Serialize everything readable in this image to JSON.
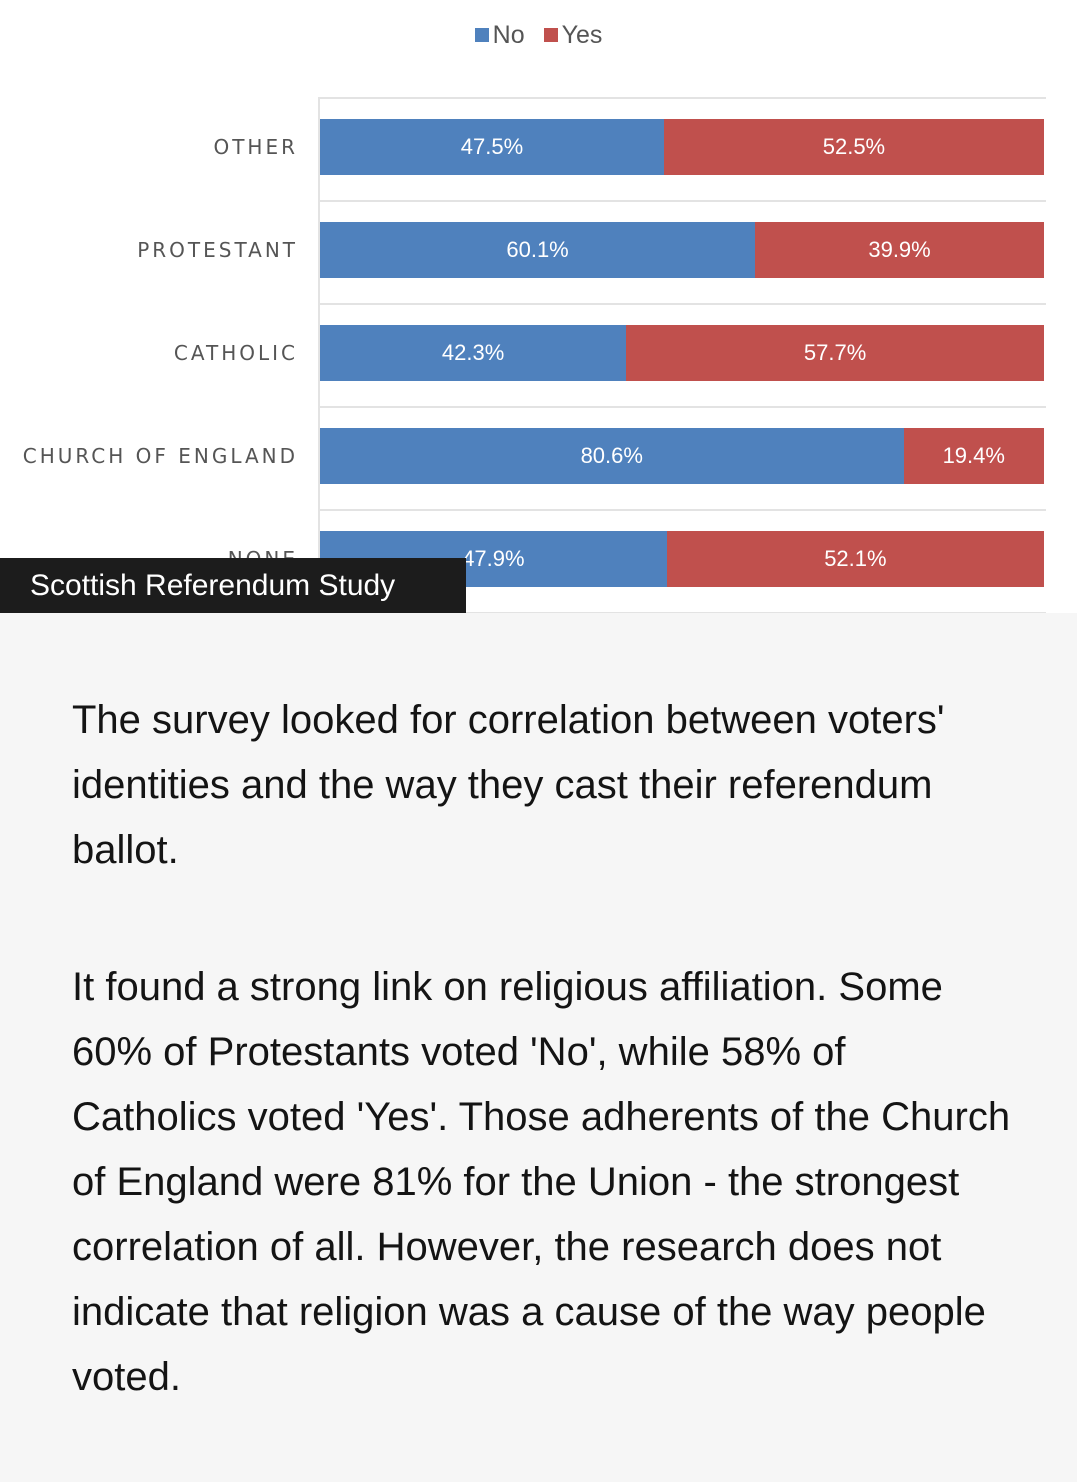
{
  "chart_data": {
    "type": "bar",
    "orientation": "horizontal",
    "stacked": true,
    "categories": [
      "OTHER",
      "PROTESTANT",
      "CATHOLIC",
      "CHURCH OF ENGLAND",
      "NONE"
    ],
    "series": [
      {
        "name": "No",
        "color": "#4f81bd",
        "values": [
          47.5,
          60.1,
          42.3,
          80.6,
          47.9
        ],
        "labels": [
          "47.5%",
          "60.1%",
          "42.3%",
          "80.6%",
          "47.9%"
        ]
      },
      {
        "name": "Yes",
        "color": "#c0504d",
        "values": [
          52.5,
          39.9,
          57.7,
          19.4,
          52.1
        ],
        "labels": [
          "52.5%",
          "39.9%",
          "57.7%",
          "19.4%",
          "52.1%"
        ]
      }
    ],
    "xlim": [
      0,
      100
    ],
    "legend": "top-center",
    "grid": true
  },
  "caption": "Scottish Referendum Study",
  "article": {
    "paragraphs": [
      "The survey looked for correlation between voters' identities and the way they cast their referendum ballot.",
      "It found a strong link on religious affiliation. Some 60% of Protestants voted 'No', while 58% of Catholics voted 'Yes'.  Those adherents of the Church of England were 81% for the Union - the strongest correlation of all. However, the research does not indicate that religion was a cause of the way people voted."
    ]
  }
}
